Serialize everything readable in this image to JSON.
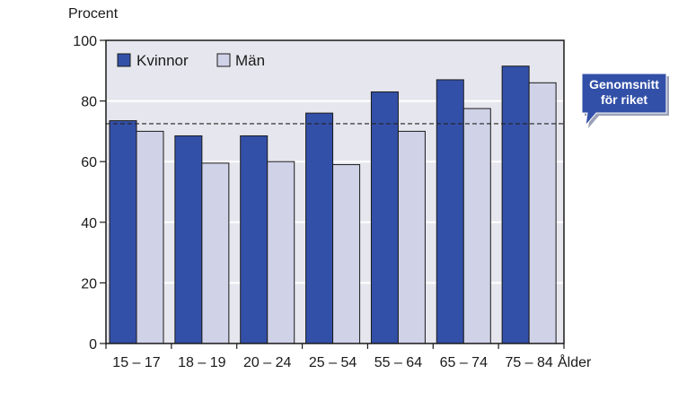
{
  "chart_data": {
    "type": "bar",
    "ylabel": "Procent",
    "xlabel": "Ålder",
    "ylim": [
      0,
      100
    ],
    "yticks": [
      0,
      20,
      40,
      60,
      80,
      100
    ],
    "grid": true,
    "legend_placement": "top-left",
    "categories": [
      "15 – 17",
      "18 – 19",
      "20 – 24",
      "25 – 54",
      "55 – 64",
      "65 – 74",
      "75 – 84"
    ],
    "series": [
      {
        "name": "Kvinnor",
        "color": "#3350a8",
        "values": [
          73.5,
          68.5,
          68.5,
          76,
          83,
          87,
          91.5
        ]
      },
      {
        "name": "Män",
        "color": "#d0d2e8",
        "values": [
          70,
          59.5,
          60,
          59,
          70,
          77.5,
          86
        ]
      }
    ],
    "reference_line": {
      "value": 72.5,
      "label_line1": "Genomsnitt",
      "label_line2": "för riket"
    },
    "colors": {
      "plot_background": "#e6e6ee",
      "callout": "#3350a8"
    }
  }
}
